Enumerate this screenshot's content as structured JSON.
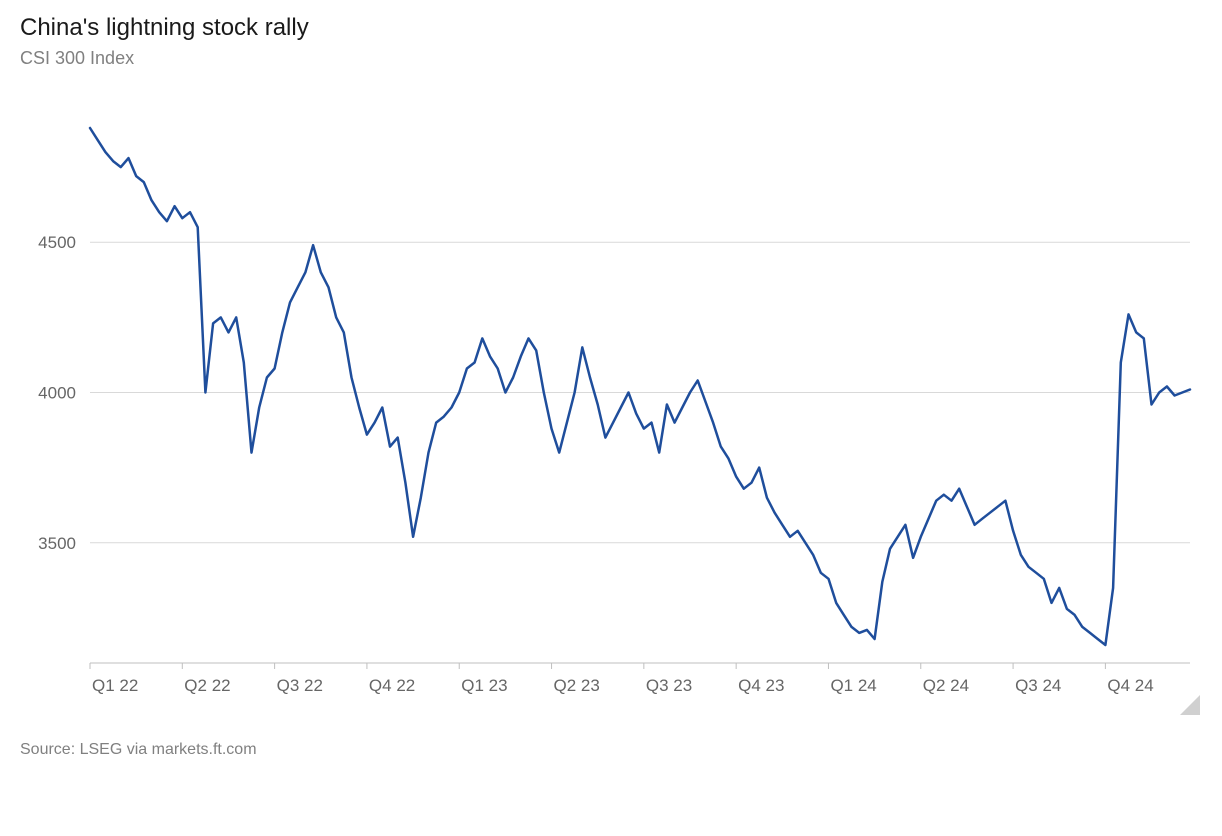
{
  "chart": {
    "type": "line",
    "title": "China's lightning stock rally",
    "subtitle": "CSI 300 Index",
    "source": "Source: LSEG via markets.ft.com",
    "title_fontsize": 24,
    "subtitle_fontsize": 18,
    "source_fontsize": 16,
    "title_color": "#1a1a1a",
    "subtitle_color": "#808080",
    "source_color": "#808080",
    "background_color": "#ffffff",
    "grid_color": "#d9d9d9",
    "baseline_color": "#bfbfbf",
    "line_color": "#1f4e9c",
    "line_width": 2.5,
    "ylim": [
      3100,
      4950
    ],
    "ytick_values": [
      3500,
      4000,
      4500
    ],
    "ytick_labels": [
      "3500",
      "4000",
      "4500"
    ],
    "x_categories": [
      "Q1 22",
      "Q2 22",
      "Q3 22",
      "Q4 22",
      "Q1 23",
      "Q2 23",
      "Q3 23",
      "Q4 23",
      "Q1 24",
      "Q2 24",
      "Q3 24",
      "Q4 24"
    ],
    "x_index_range": [
      0,
      143
    ],
    "values": [
      4880,
      4840,
      4800,
      4770,
      4750,
      4780,
      4720,
      4700,
      4640,
      4600,
      4570,
      4620,
      4580,
      4600,
      4550,
      4000,
      4230,
      4250,
      4200,
      4250,
      4100,
      3800,
      3950,
      4050,
      4080,
      4200,
      4300,
      4350,
      4400,
      4490,
      4400,
      4350,
      4250,
      4200,
      4050,
      3950,
      3860,
      3900,
      3950,
      3820,
      3850,
      3700,
      3520,
      3650,
      3800,
      3900,
      3920,
      3950,
      4000,
      4080,
      4100,
      4180,
      4120,
      4080,
      4000,
      4050,
      4120,
      4180,
      4140,
      4000,
      3880,
      3800,
      3900,
      4000,
      4150,
      4050,
      3960,
      3850,
      3900,
      3950,
      4000,
      3930,
      3880,
      3900,
      3800,
      3960,
      3900,
      3950,
      4000,
      4040,
      3970,
      3900,
      3820,
      3780,
      3720,
      3680,
      3700,
      3750,
      3650,
      3600,
      3560,
      3520,
      3540,
      3500,
      3460,
      3400,
      3380,
      3300,
      3260,
      3220,
      3200,
      3210,
      3180,
      3370,
      3480,
      3520,
      3560,
      3450,
      3520,
      3580,
      3640,
      3660,
      3640,
      3680,
      3620,
      3560,
      3580,
      3600,
      3620,
      3640,
      3540,
      3460,
      3420,
      3400,
      3380,
      3300,
      3350,
      3280,
      3260,
      3220,
      3200,
      3180,
      3160,
      3350,
      4100,
      4260,
      4200,
      4180,
      3960,
      4000,
      4020,
      3990,
      4000,
      4010
    ]
  }
}
